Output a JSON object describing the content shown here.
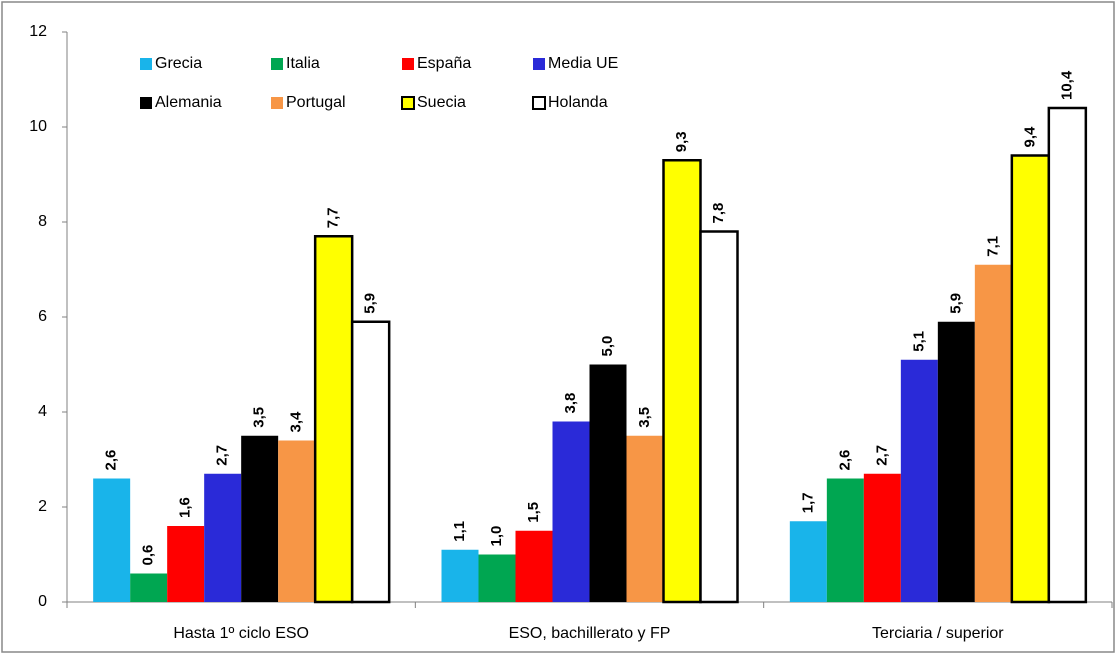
{
  "chart_data": {
    "type": "bar",
    "categories": [
      "Hasta 1º ciclo ESO",
      "ESO, bachillerato y FP",
      "Terciaria / superior"
    ],
    "series": [
      {
        "name": "Grecia",
        "color": "#19b4ea",
        "values": [
          2.6,
          1.1,
          1.7
        ],
        "value_labels": [
          "2,6",
          "1,1",
          "1,7"
        ]
      },
      {
        "name": "Italia",
        "color": "#00a651",
        "values": [
          0.6,
          1.0,
          2.6
        ],
        "value_labels": [
          "0,6",
          "1,0",
          "2,6"
        ]
      },
      {
        "name": "España",
        "color": "#ff0000",
        "values": [
          1.6,
          1.5,
          2.7
        ],
        "value_labels": [
          "1,6",
          "1,5",
          "2,7"
        ]
      },
      {
        "name": "Media UE",
        "color": "#2a2ad8",
        "values": [
          2.7,
          3.8,
          5.1
        ],
        "value_labels": [
          "2,7",
          "3,8",
          "5,1"
        ]
      },
      {
        "name": "Alemania",
        "color": "#000000",
        "values": [
          3.5,
          5.0,
          5.9
        ],
        "value_labels": [
          "3,5",
          "5,0",
          "5,9"
        ]
      },
      {
        "name": "Portugal",
        "color": "#f79646",
        "values": [
          3.4,
          3.5,
          7.1
        ],
        "value_labels": [
          "3,4",
          "3,5",
          "7,1"
        ]
      },
      {
        "name": "Suecia",
        "color": "#ffff00",
        "edgecolor": "#000000",
        "values": [
          7.7,
          9.3,
          9.4
        ],
        "value_labels": [
          "7,7",
          "9,3",
          "9,4"
        ]
      },
      {
        "name": "Holanda",
        "color": "#ffffff",
        "edgecolor": "#000000",
        "values": [
          5.9,
          7.8,
          10.4
        ],
        "value_labels": [
          "5,9",
          "7,8",
          "10,4"
        ]
      }
    ],
    "ylim": [
      0,
      12
    ],
    "yticks": [
      0,
      2,
      4,
      6,
      8,
      10,
      12
    ],
    "grid": false,
    "legend": "upper left"
  }
}
